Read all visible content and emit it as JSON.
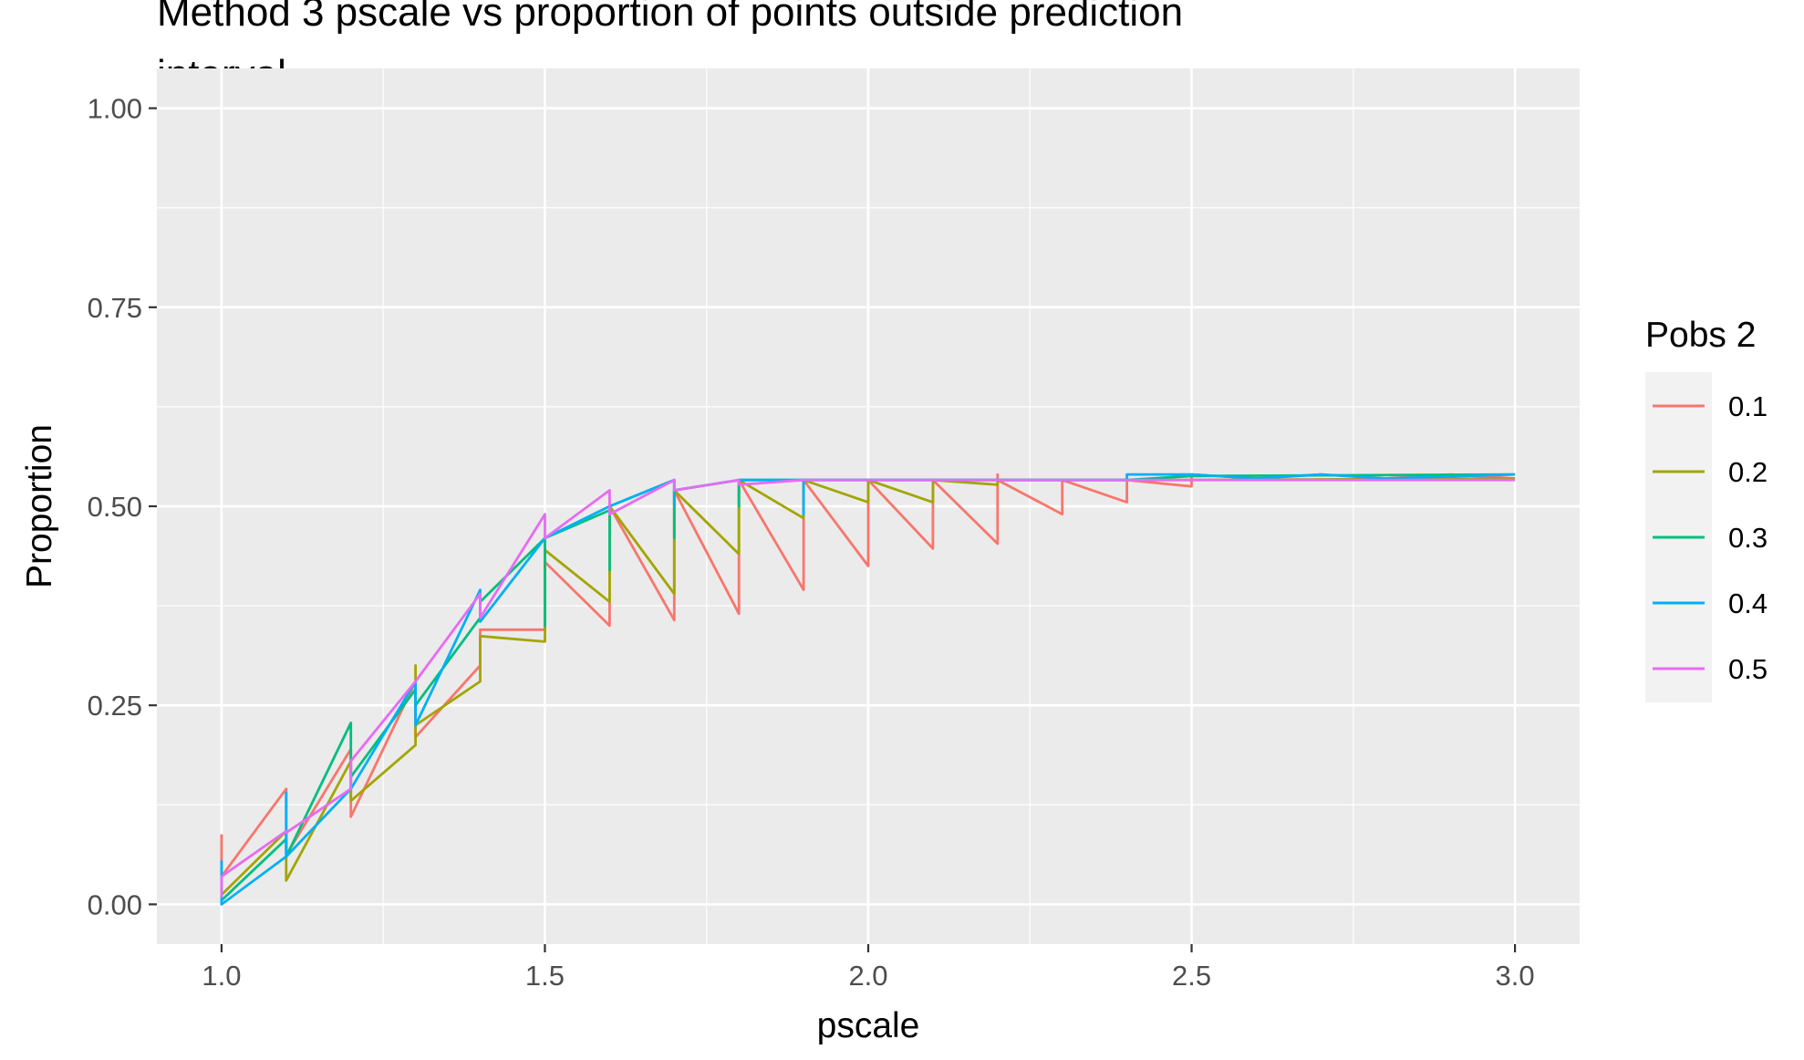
{
  "chart_data": {
    "type": "line",
    "title_lines": [
      "Method 3 pscale vs proportion of points outside prediction",
      "interval"
    ],
    "xlabel": "pscale",
    "ylabel": "Proportion",
    "xlim": [
      0.9,
      3.1
    ],
    "ylim": [
      -0.05,
      1.05
    ],
    "x_ticks": [
      1.0,
      1.5,
      2.0,
      2.5,
      3.0
    ],
    "x_tick_labels": [
      "1.0",
      "1.5",
      "2.0",
      "2.5",
      "3.0"
    ],
    "y_ticks": [
      0.0,
      0.25,
      0.5,
      0.75,
      1.0
    ],
    "y_tick_labels": [
      "0.00",
      "0.25",
      "0.50",
      "0.75",
      "1.00"
    ],
    "x_minor": [
      1.25,
      1.75,
      2.25,
      2.75
    ],
    "y_minor": [
      0.125,
      0.375,
      0.625,
      0.875
    ],
    "grid": true,
    "legend_title": "Pobs 2",
    "legend_position": "right",
    "series": [
      {
        "name": "0.1",
        "color": "#F8766D",
        "points": [
          [
            1.0,
            0.088
          ],
          [
            1.0,
            0.035
          ],
          [
            1.1,
            0.145
          ],
          [
            1.1,
            0.062
          ],
          [
            1.2,
            0.195
          ],
          [
            1.2,
            0.11
          ],
          [
            1.3,
            0.28
          ],
          [
            1.3,
            0.21
          ],
          [
            1.4,
            0.3
          ],
          [
            1.4,
            0.345
          ],
          [
            1.5,
            0.345
          ],
          [
            1.5,
            0.43
          ],
          [
            1.6,
            0.35
          ],
          [
            1.6,
            0.5
          ],
          [
            1.7,
            0.357
          ],
          [
            1.7,
            0.52
          ],
          [
            1.8,
            0.365
          ],
          [
            1.8,
            0.533
          ],
          [
            1.9,
            0.395
          ],
          [
            1.9,
            0.533
          ],
          [
            2.0,
            0.425
          ],
          [
            2.0,
            0.533
          ],
          [
            2.1,
            0.447
          ],
          [
            2.1,
            0.533
          ],
          [
            2.2,
            0.453
          ],
          [
            2.2,
            0.54
          ],
          [
            2.2,
            0.533
          ],
          [
            2.3,
            0.49
          ],
          [
            2.3,
            0.533
          ],
          [
            2.4,
            0.505
          ],
          [
            2.4,
            0.533
          ],
          [
            2.5,
            0.525
          ],
          [
            2.5,
            0.54
          ],
          [
            2.6,
            0.535
          ],
          [
            2.7,
            0.54
          ],
          [
            2.8,
            0.535
          ],
          [
            2.9,
            0.54
          ],
          [
            3.0,
            0.535
          ]
        ]
      },
      {
        "name": "0.2",
        "color": "#A3A500",
        "points": [
          [
            1.0,
            0.012
          ],
          [
            1.1,
            0.092
          ],
          [
            1.1,
            0.03
          ],
          [
            1.2,
            0.18
          ],
          [
            1.2,
            0.13
          ],
          [
            1.3,
            0.2
          ],
          [
            1.3,
            0.3
          ],
          [
            1.3,
            0.225
          ],
          [
            1.4,
            0.28
          ],
          [
            1.4,
            0.337
          ],
          [
            1.5,
            0.33
          ],
          [
            1.5,
            0.445
          ],
          [
            1.6,
            0.38
          ],
          [
            1.6,
            0.5
          ],
          [
            1.7,
            0.39
          ],
          [
            1.7,
            0.52
          ],
          [
            1.8,
            0.44
          ],
          [
            1.8,
            0.533
          ],
          [
            1.9,
            0.485
          ],
          [
            1.9,
            0.533
          ],
          [
            2.0,
            0.505
          ],
          [
            2.0,
            0.533
          ],
          [
            2.1,
            0.505
          ],
          [
            2.1,
            0.533
          ],
          [
            2.2,
            0.527
          ],
          [
            2.2,
            0.533
          ],
          [
            2.5,
            0.533
          ],
          [
            3.0,
            0.535
          ]
        ]
      },
      {
        "name": "0.3",
        "color": "#00BF7D",
        "points": [
          [
            1.0,
            0.005
          ],
          [
            1.1,
            0.082
          ],
          [
            1.1,
            0.06
          ],
          [
            1.2,
            0.228
          ],
          [
            1.2,
            0.16
          ],
          [
            1.3,
            0.27
          ],
          [
            1.3,
            0.25
          ],
          [
            1.4,
            0.36
          ],
          [
            1.4,
            0.38
          ],
          [
            1.5,
            0.46
          ],
          [
            1.5,
            0.35
          ],
          [
            1.5,
            0.46
          ],
          [
            1.6,
            0.495
          ],
          [
            1.6,
            0.42
          ],
          [
            1.6,
            0.5
          ],
          [
            1.7,
            0.533
          ],
          [
            1.7,
            0.46
          ],
          [
            1.7,
            0.52
          ],
          [
            1.8,
            0.533
          ],
          [
            1.8,
            0.5
          ],
          [
            1.8,
            0.533
          ],
          [
            2.4,
            0.533
          ],
          [
            2.5,
            0.538
          ],
          [
            3.0,
            0.54
          ]
        ]
      },
      {
        "name": "0.4",
        "color": "#00B0F6",
        "points": [
          [
            1.0,
            0.055
          ],
          [
            1.0,
            0.0
          ],
          [
            1.1,
            0.06
          ],
          [
            1.1,
            0.14
          ],
          [
            1.1,
            0.06
          ],
          [
            1.2,
            0.145
          ],
          [
            1.3,
            0.28
          ],
          [
            1.3,
            0.225
          ],
          [
            1.4,
            0.395
          ],
          [
            1.4,
            0.355
          ],
          [
            1.5,
            0.46
          ],
          [
            1.6,
            0.5
          ],
          [
            1.7,
            0.533
          ],
          [
            1.7,
            0.5
          ],
          [
            1.7,
            0.52
          ],
          [
            1.8,
            0.533
          ],
          [
            1.8,
            0.533
          ],
          [
            1.9,
            0.533
          ],
          [
            1.9,
            0.49
          ],
          [
            1.9,
            0.533
          ],
          [
            2.4,
            0.533
          ],
          [
            2.4,
            0.54
          ],
          [
            2.5,
            0.54
          ],
          [
            2.6,
            0.535
          ],
          [
            2.7,
            0.54
          ],
          [
            2.8,
            0.535
          ],
          [
            3.0,
            0.54
          ]
        ]
      },
      {
        "name": "0.5",
        "color": "#E76BF3",
        "points": [
          [
            1.0,
            0.035
          ],
          [
            1.0,
            0.01
          ],
          [
            1.0,
            0.035
          ],
          [
            1.1,
            0.092
          ],
          [
            1.1,
            0.09
          ],
          [
            1.2,
            0.145
          ],
          [
            1.2,
            0.18
          ],
          [
            1.3,
            0.28
          ],
          [
            1.4,
            0.39
          ],
          [
            1.4,
            0.36
          ],
          [
            1.5,
            0.49
          ],
          [
            1.5,
            0.46
          ],
          [
            1.6,
            0.52
          ],
          [
            1.6,
            0.49
          ],
          [
            1.7,
            0.533
          ],
          [
            1.7,
            0.52
          ],
          [
            1.8,
            0.533
          ],
          [
            1.8,
            0.527
          ],
          [
            1.9,
            0.533
          ],
          [
            2.5,
            0.533
          ],
          [
            3.0,
            0.533
          ]
        ]
      }
    ]
  }
}
